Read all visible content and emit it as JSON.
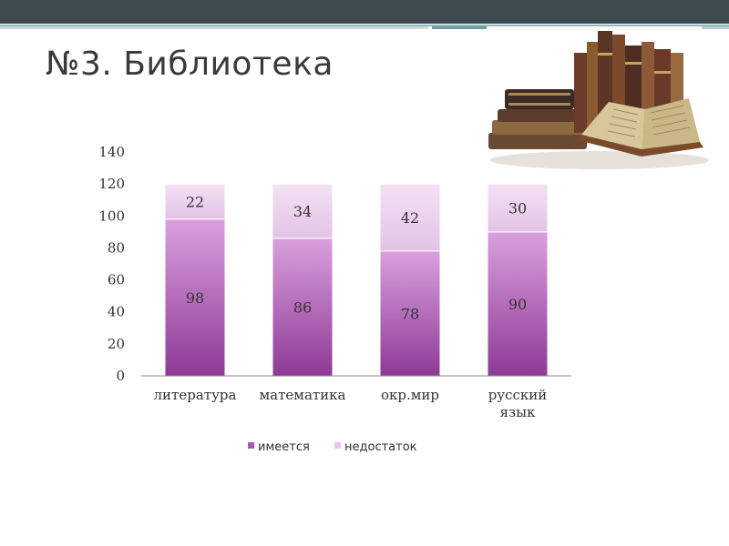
{
  "slide": {
    "title": "№3. Библиотека"
  },
  "colors": {
    "series0": "#b058b8",
    "series1": "#e8c8ea"
  },
  "chart_data": {
    "type": "bar",
    "stacked": true,
    "categories": [
      "литература",
      "математика",
      "окр.мир",
      "русский язык"
    ],
    "series": [
      {
        "name": "имеется",
        "values": [
          98,
          86,
          78,
          90
        ]
      },
      {
        "name": "недостаток",
        "values": [
          22,
          34,
          42,
          30
        ]
      }
    ],
    "ylim": [
      0,
      140
    ],
    "yticks": [
      0,
      20,
      40,
      60,
      80,
      100,
      120,
      140
    ],
    "grid": false,
    "legend": "bottom"
  }
}
